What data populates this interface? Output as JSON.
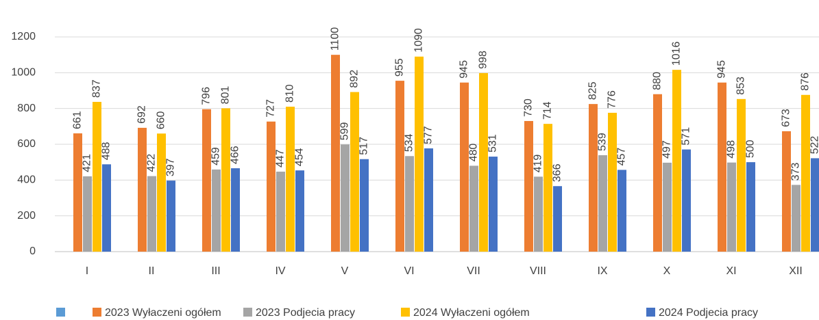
{
  "chart_data": {
    "type": "bar",
    "categories": [
      "I",
      "II",
      "III",
      "IV",
      "V",
      "VI",
      "VII",
      "VIII",
      "IX",
      "X",
      "XI",
      "XII"
    ],
    "series": [
      {
        "name": "2023 Wyłaczeni ogółem",
        "color": "#ed7d31",
        "values": [
          661,
          692,
          796,
          727,
          1100,
          955,
          945,
          730,
          825,
          880,
          945,
          673
        ]
      },
      {
        "name": "2023 Podjecia pracy",
        "color": "#a5a5a5",
        "values": [
          421,
          422,
          459,
          447,
          599,
          534,
          480,
          419,
          539,
          497,
          498,
          373
        ]
      },
      {
        "name": "2024 Wyłaczeni ogółem",
        "color": "#ffc000",
        "values": [
          837,
          660,
          801,
          810,
          892,
          1090,
          998,
          714,
          776,
          1016,
          853,
          876
        ]
      },
      {
        "name": "2024 Podjecia pracy",
        "color": "#4472c4",
        "values": [
          488,
          397,
          466,
          454,
          517,
          577,
          531,
          366,
          457,
          571,
          500,
          522
        ]
      }
    ],
    "ylim": [
      0,
      1200
    ],
    "yticks": [
      0,
      200,
      400,
      600,
      800,
      1000,
      1200
    ],
    "grid": true,
    "legend": "bottom"
  }
}
